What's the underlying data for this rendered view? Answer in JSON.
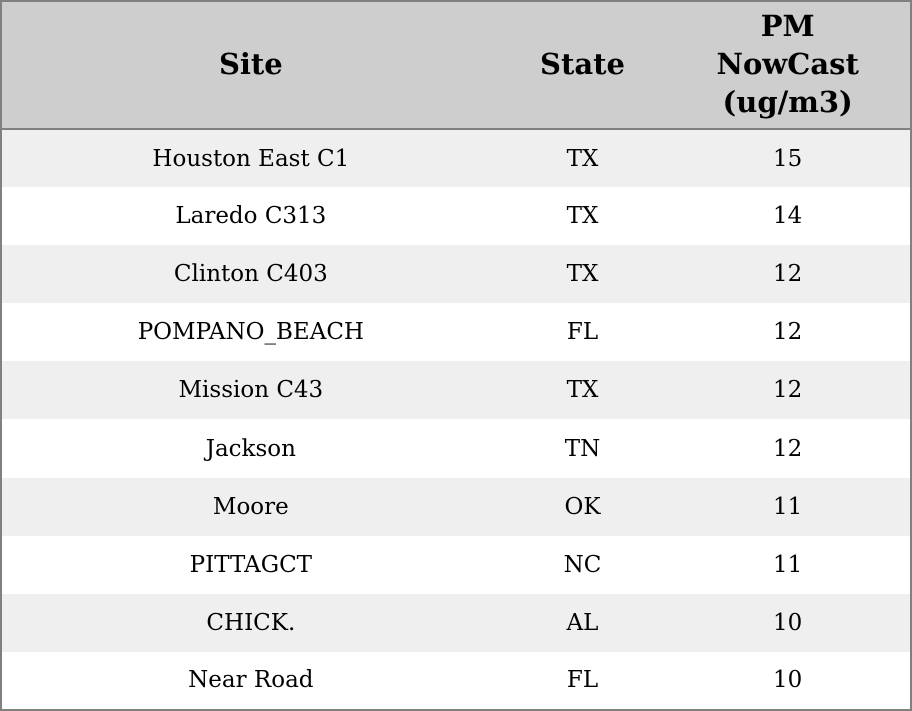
{
  "table": {
    "columns": [
      {
        "key": "site",
        "label": "Site"
      },
      {
        "key": "state",
        "label": "State"
      },
      {
        "key": "pm_nowcast",
        "label": "PM\nNowCast\n(ug/m3)"
      }
    ],
    "rows": [
      {
        "site": "Houston East C1",
        "state": "TX",
        "pm_nowcast": "15"
      },
      {
        "site": "Laredo C313",
        "state": "TX",
        "pm_nowcast": "14"
      },
      {
        "site": "Clinton C403",
        "state": "TX",
        "pm_nowcast": "12"
      },
      {
        "site": "POMPANO_BEACH",
        "state": "FL",
        "pm_nowcast": "12"
      },
      {
        "site": "Mission C43",
        "state": "TX",
        "pm_nowcast": "12"
      },
      {
        "site": "Jackson",
        "state": "TN",
        "pm_nowcast": "12"
      },
      {
        "site": "Moore",
        "state": "OK",
        "pm_nowcast": "11"
      },
      {
        "site": "PITTAGCT",
        "state": "NC",
        "pm_nowcast": "11"
      },
      {
        "site": "CHICK.",
        "state": "AL",
        "pm_nowcast": "10"
      },
      {
        "site": "Near Road",
        "state": "FL",
        "pm_nowcast": "10"
      }
    ]
  },
  "colors": {
    "border": "#808080",
    "header_bg": "#cecece",
    "stripe_bg": "#efefef",
    "row_bg": "#ffffff",
    "text": "#000000"
  }
}
